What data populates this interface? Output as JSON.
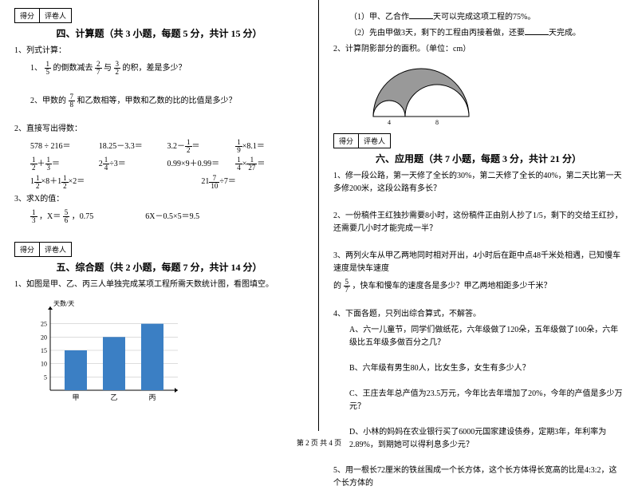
{
  "scorebox": {
    "label1": "得分",
    "label2": "评卷人"
  },
  "sec4": {
    "title": "四、计算题（共 3 小题，每题 5 分，共计 15 分）",
    "q1_head": "1、列式计算：",
    "q1_1_a": "1、",
    "q1_1_b": "的倒数减去",
    "q1_1_c": "与",
    "q1_1_d": "的积，差是多少？",
    "f1_n": "1",
    "f1_d": "5",
    "f2_n": "2",
    "f2_d": "7",
    "f3_n": "3",
    "f3_d": "2",
    "q1_2_a": "2、甲数的",
    "q1_2_b": "和乙数相等，甲数和乙数的比的比值是多少？",
    "f4_n": "7",
    "f4_d": "8",
    "q2_head": "2、直接写出得数：",
    "calc": {
      "r1c1": "578 ÷ 216＝",
      "r1c2": "18.25－3.3＝",
      "r1c3": "",
      "r1c4": "",
      "r1c3_a": "3.2－",
      "r1c3_b": "＝",
      "r1c3_fn": "1",
      "r1c3_fd": "2",
      "r1c4_a": "",
      "r1c4_b": "×8.1＝",
      "r1c4_fn": "1",
      "r1c4_fd": "9",
      "r2c1_fn1": "1",
      "r2c1_fd1": "2",
      "r2c1_mid": "＋",
      "r2c1_fn2": "1",
      "r2c1_fd2": "3",
      "r2c1_eq": "＝",
      "r2c2_a": "2",
      "r2c2_fn": "1",
      "r2c2_fd": "4",
      "r2c2_b": "÷3＝",
      "r2c3": "0.99×9＋0.99＝",
      "r2c4_fn1": "1",
      "r2c4_fd1": "4",
      "r2c4_mid": "×",
      "r2c4_fn2": "1",
      "r2c4_fd2": "27",
      "r2c4_eq": "＝",
      "r3c1_a": "1",
      "r3c1_fn1": "1",
      "r3c1_fd1": "2",
      "r3c1_b": "×8＋1",
      "r3c1_fn2": "1",
      "r3c1_fd2": "2",
      "r3c1_c": "×2＝",
      "r3c2_a": "21",
      "r3c2_fn": "7",
      "r3c2_fd": "10",
      "r3c2_b": "÷7＝"
    },
    "q3_head": "3、求X的值：",
    "q3_1a": "",
    "q3_1_fn": "1",
    "q3_1_fd": "3",
    "q3_1b": "，X＝",
    "q3_1_fn2": "5",
    "q3_1_fd2": "6",
    "q3_1c": "，0.75",
    "q3_2": "6X－0.5×5＝9.5"
  },
  "sec5": {
    "title": "五、综合题（共 2 小题，每题 7 分，共计 14 分）",
    "q1": "1、如图是甲、乙、丙三人单独完成某项工程所需天数统计图，看图填空。",
    "chart": {
      "ylabel": "天数/天",
      "yticks": [
        "5",
        "10",
        "15",
        "20",
        "25"
      ],
      "ymax": 30,
      "bars": [
        {
          "label": "甲",
          "value": 15,
          "color": "#3b7fc4"
        },
        {
          "label": "乙",
          "value": 20,
          "color": "#3b7fc4"
        },
        {
          "label": "丙",
          "value": 25,
          "color": "#3b7fc4"
        }
      ],
      "grid_color": "#bbb",
      "axis_color": "#000"
    }
  },
  "right_top": {
    "q1": "（1）甲、乙合作",
    "q1b": "天可以完成这项工程的75%。",
    "q2": "（2）先由甲做3天，剩下的工程由丙接着做，还要",
    "q2b": "天完成。",
    "q2head": "2、计算阴影部分的面积。（单位：cm）",
    "arc": {
      "w": 180,
      "h": 80,
      "r_big": 60,
      "label4": "4",
      "label8": "8",
      "fill": "#999"
    }
  },
  "sec6": {
    "title": "六、应用题（共 7 小题，每题 3 分，共计 21 分）",
    "q1": "1、修一段公路，第一天修了全长的30%，第二天修了全长的40%，第二天比第一天多修200米，这段公路有多长？",
    "q2": "2、一份稿件王红独抄需要8小时，这份稿件正由别人抄了1/5，剩下的交给王红抄，还需要几小时才能完成一半？",
    "q3a": "3、两列火车从甲乙两地同时相对开出，4小时后在距中点48千米处相遇，已知慢车速度是快车速度",
    "q3_fn": "5",
    "q3_fd": "7",
    "q3b": "的",
    "q3c": "，快车和慢车的速度各是多少？甲乙两地相距多少千米？",
    "q4": "4、下面各题，只列出综合算式，不解答。",
    "q4a": "A、六一儿童节，同学们做纸花，六年级做了120朵，五年级做了100朵，六年级比五年级多做百分之几？",
    "q4b": "B、六年级有男生80人，比女生多，女生有多少人？",
    "q4c": "C、王庄去年总产值为23.5万元，今年比去年增加了20%，今年的产值是多少万元？",
    "q4d": "D、小林的妈妈在农业银行买了6000元国家建设债券，定期3年，年利率为2.89%，到期她可以得利息多少元？",
    "q5": "5、用一根长72厘米的铁丝围成一个长方体，这个长方体得长宽高的比是4:3:2，这个长方体的"
  },
  "footer": "第 2 页 共 4 页"
}
